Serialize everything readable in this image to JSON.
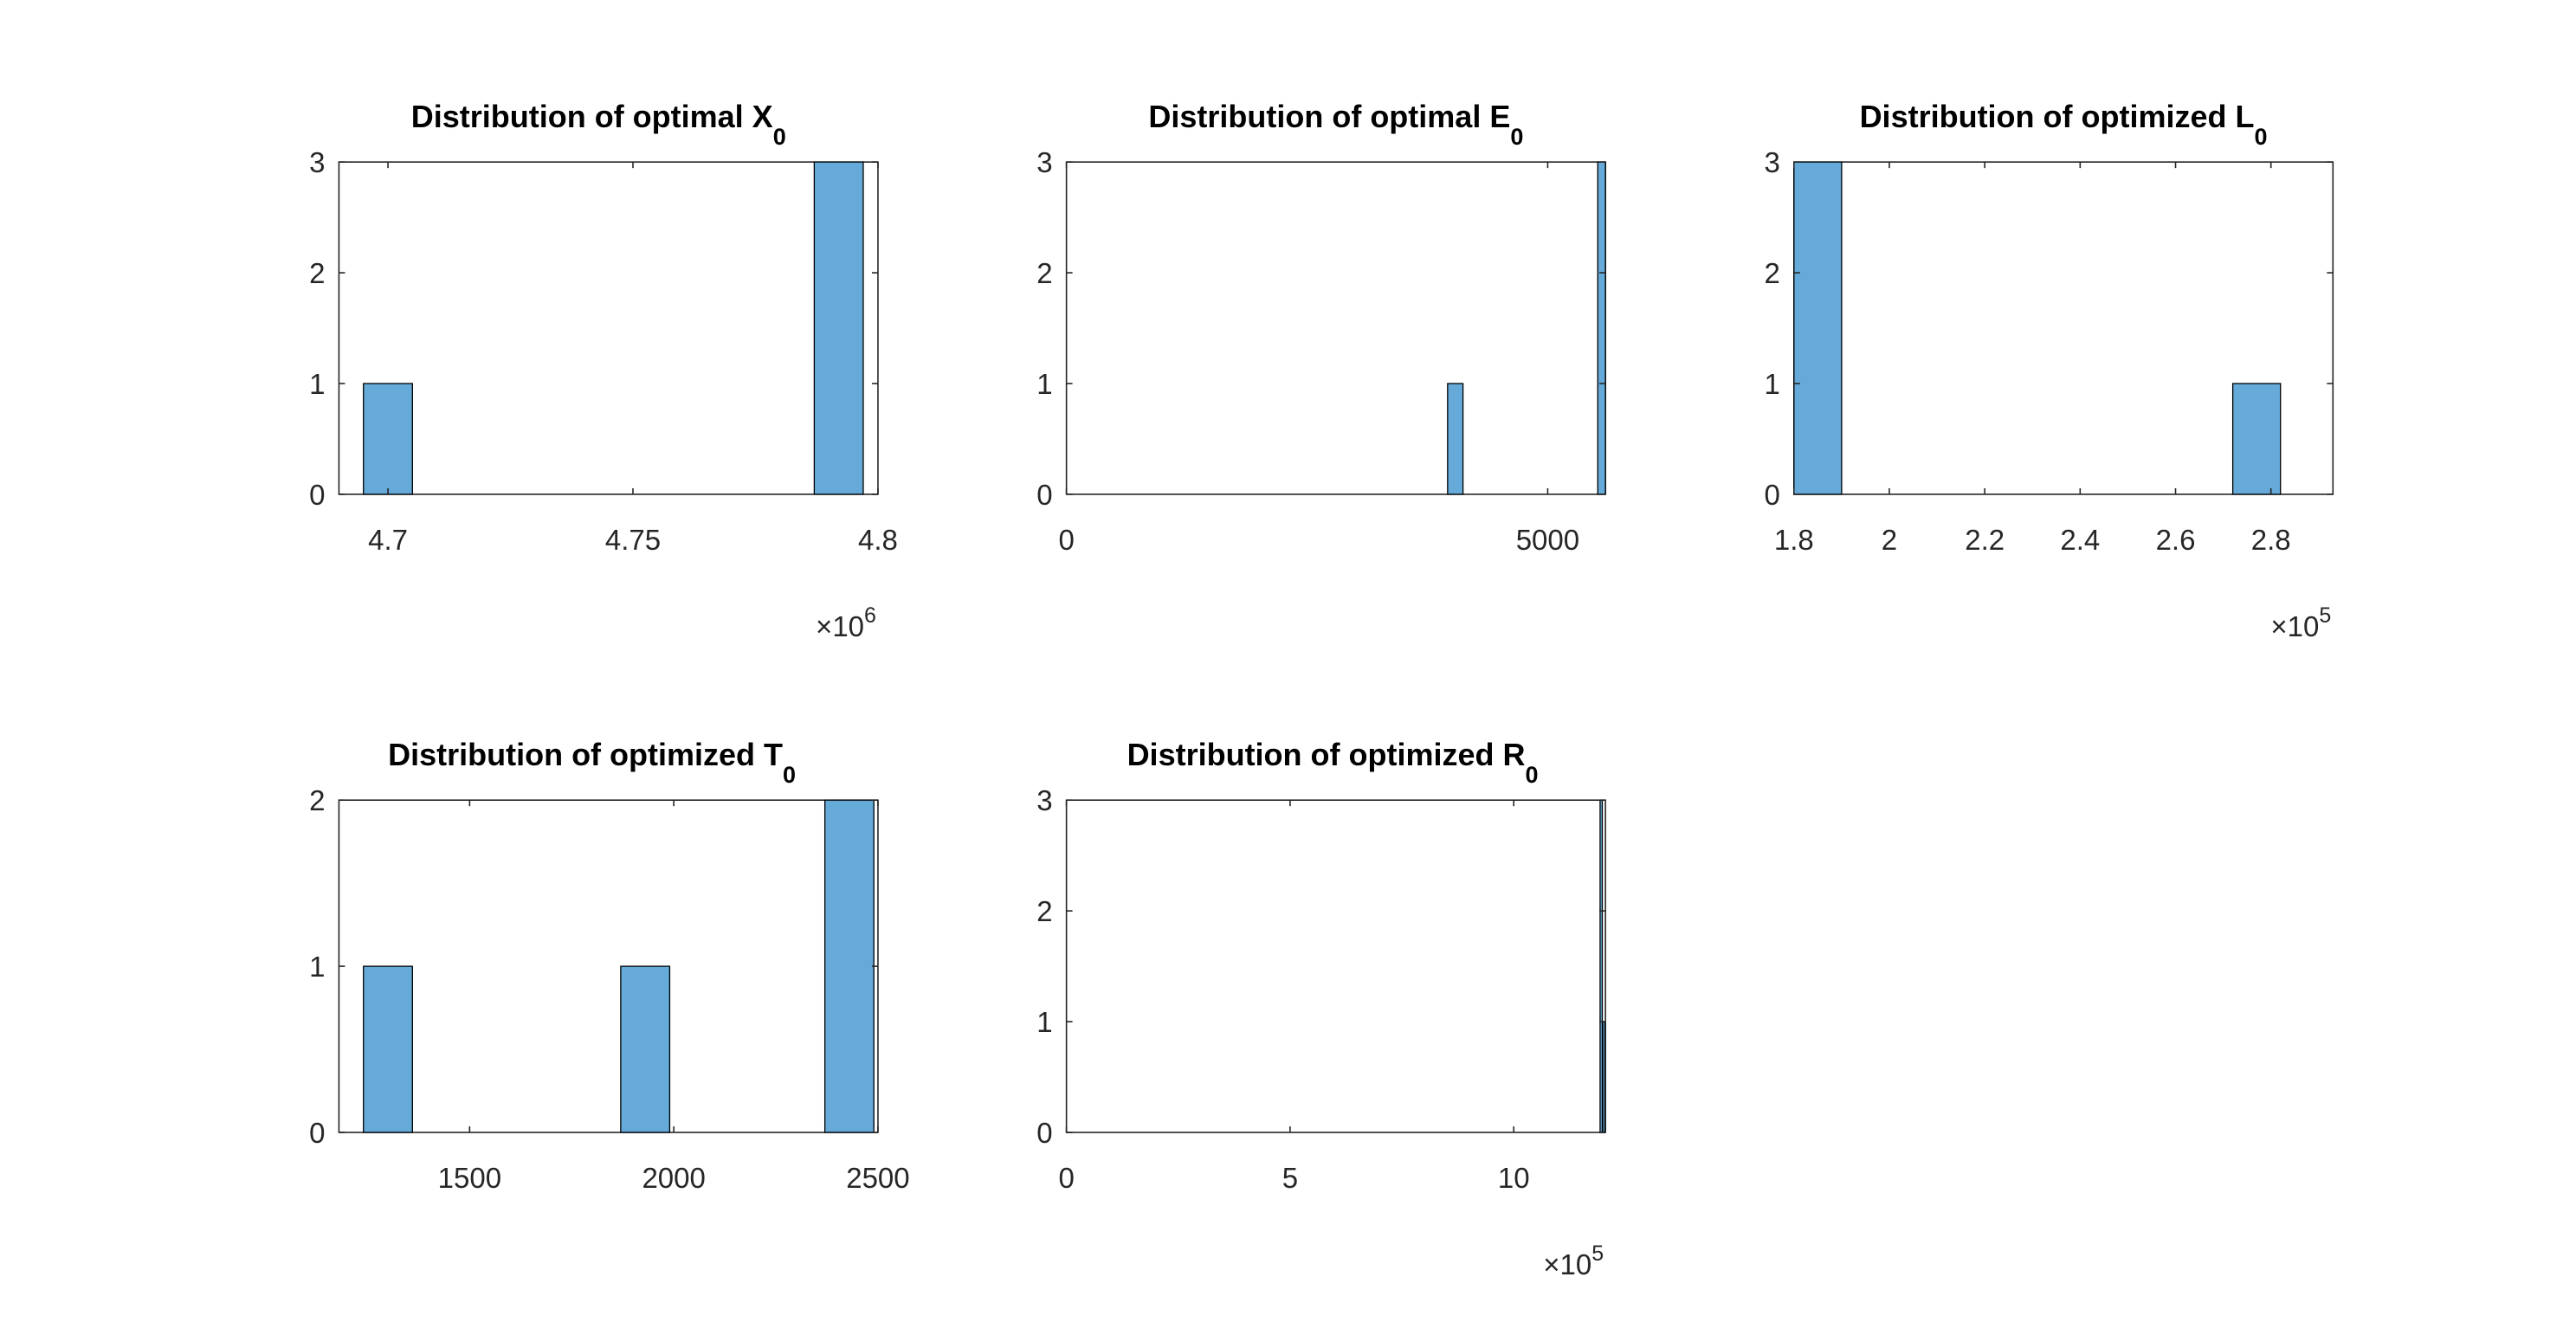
{
  "chart_data": [
    {
      "type": "bar",
      "title": "Distribution of optimal X",
      "title_subscript": "0",
      "x_ticks": [
        "4.7",
        "4.75",
        "4.8"
      ],
      "x_tick_values": [
        4.7,
        4.75,
        4.8
      ],
      "x_multiplier": {
        "base": "10",
        "exponent": "6"
      },
      "xlim": [
        4.69,
        4.8
      ],
      "y_ticks": [
        "0",
        "1",
        "2",
        "3"
      ],
      "ylim": [
        0,
        3
      ],
      "bars": [
        {
          "x_start": 4.695,
          "x_end": 4.705,
          "count": 1
        },
        {
          "x_start": 4.787,
          "x_end": 4.797,
          "count": 3
        }
      ],
      "bar_color": "#65AAD8"
    },
    {
      "type": "bar",
      "title": "Distribution of optimal E",
      "title_subscript": "0",
      "x_ticks": [
        "0",
        "5000"
      ],
      "x_tick_values": [
        0,
        5000
      ],
      "xlim": [
        0,
        5600
      ],
      "y_ticks": [
        "0",
        "1",
        "2",
        "3"
      ],
      "ylim": [
        0,
        3
      ],
      "bars": [
        {
          "x_start": 3960,
          "x_end": 4120,
          "count": 1
        },
        {
          "x_start": 5520,
          "x_end": 5600,
          "count": 3
        }
      ],
      "bar_color": "#65AAD8"
    },
    {
      "type": "bar",
      "title": "Distribution of optimized L",
      "title_subscript": "0",
      "x_ticks": [
        "1.8",
        "2",
        "2.2",
        "2.4",
        "2.6",
        "2.8"
      ],
      "x_tick_values": [
        1.8,
        2.0,
        2.2,
        2.4,
        2.6,
        2.8
      ],
      "x_multiplier": {
        "base": "10",
        "exponent": "5"
      },
      "xlim": [
        1.8,
        2.93
      ],
      "y_ticks": [
        "0",
        "1",
        "2",
        "3"
      ],
      "ylim": [
        0,
        3
      ],
      "bars": [
        {
          "x_start": 1.8,
          "x_end": 1.9,
          "count": 3
        },
        {
          "x_start": 2.72,
          "x_end": 2.82,
          "count": 1
        }
      ],
      "bar_color": "#65AAD8"
    },
    {
      "type": "bar",
      "title": "Distribution of optimized T",
      "title_subscript": "0",
      "x_ticks": [
        "1500",
        "2000",
        "2500"
      ],
      "x_tick_values": [
        1500,
        2000,
        2500
      ],
      "xlim": [
        1180,
        2500
      ],
      "y_ticks": [
        "0",
        "1",
        "2"
      ],
      "ylim": [
        0,
        2
      ],
      "bars": [
        {
          "x_start": 1240,
          "x_end": 1360,
          "count": 1
        },
        {
          "x_start": 1870,
          "x_end": 1990,
          "count": 1
        },
        {
          "x_start": 2370,
          "x_end": 2490,
          "count": 2
        }
      ],
      "bar_color": "#65AAD8"
    },
    {
      "type": "bar",
      "title": "Distribution of optimized R",
      "title_subscript": "0",
      "x_ticks": [
        "0",
        "5",
        "10"
      ],
      "x_tick_values": [
        0,
        5,
        10
      ],
      "x_multiplier": {
        "base": "10",
        "exponent": "5"
      },
      "xlim": [
        0,
        12.05
      ],
      "y_ticks": [
        "0",
        "1",
        "2",
        "3"
      ],
      "ylim": [
        0,
        3
      ],
      "bars": [
        {
          "x_start": 11.93,
          "x_end": 11.98,
          "count": 3
        },
        {
          "x_start": 11.99,
          "x_end": 12.04,
          "count": 1
        }
      ],
      "bar_color": "#65AAD8"
    }
  ]
}
